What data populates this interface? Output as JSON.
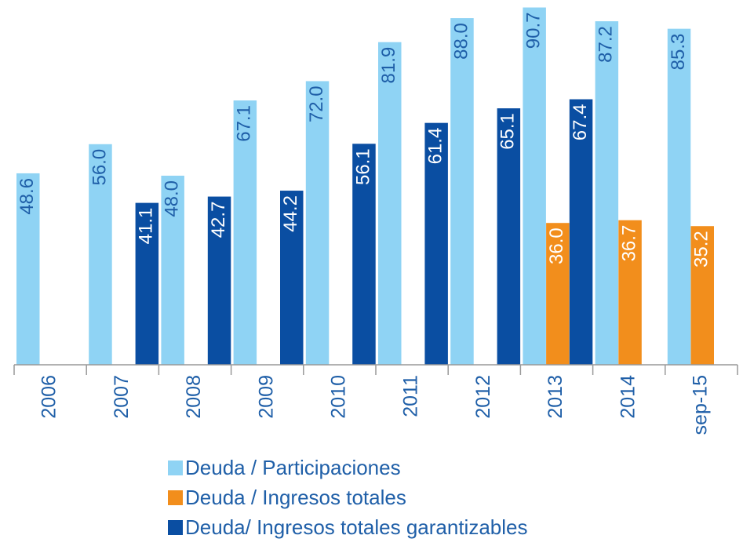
{
  "chart_data": {
    "type": "bar",
    "categories": [
      "2006",
      "2007",
      "2008",
      "2009",
      "2010",
      "2011",
      "2012",
      "2013",
      "2014",
      "sep-15"
    ],
    "series": [
      {
        "name": "Deuda / Participaciones",
        "color": "#8fd3f4",
        "label_color": "#1f5fa8",
        "values": [
          48.6,
          56,
          48,
          67.1,
          72,
          81.9,
          88,
          90.7,
          87.2,
          85.3
        ],
        "value_labels": [
          "48.6",
          "56.0",
          "48.0",
          "67.1",
          "72.0",
          "81.9",
          "88.0",
          "90.7",
          "87.2",
          "85.3"
        ]
      },
      {
        "name": "Deuda / Ingresos totales",
        "color": "#f28e1c",
        "label_color": "#ffffff",
        "values": [
          null,
          null,
          null,
          null,
          null,
          null,
          null,
          36,
          36.7,
          35.2
        ],
        "value_labels": [
          null,
          null,
          null,
          null,
          null,
          null,
          null,
          "36.0",
          "36.7",
          "35.2"
        ]
      },
      {
        "name": "Deuda/ Ingresos totales garantizables",
        "color": "#0a4ea2",
        "label_color": "#ffffff",
        "values": [
          null,
          41.1,
          42.7,
          44.2,
          56.1,
          61.4,
          65.1,
          67.4,
          null,
          null
        ],
        "value_labels": [
          null,
          "41.1",
          "42.7",
          "44.2",
          "56.1",
          "61.4",
          "65.1",
          "67.4",
          null,
          null
        ]
      }
    ],
    "ylim": [
      0,
      92
    ],
    "grid": false
  }
}
